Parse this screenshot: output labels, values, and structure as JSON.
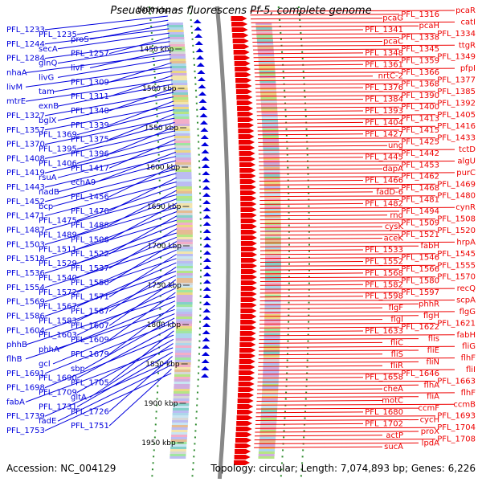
{
  "title": "Pseudomonas fluorescens Pf-5, complete genome",
  "footer": {
    "accession": "Accession: NC_004129",
    "stats": "Topology: circular; Length: 7,074,893 bp; Genes: 6,226"
  },
  "colors": {
    "left_genes": "#0000dd",
    "right_genes": "#ee0000",
    "backbone": "#888888",
    "gc_dots": "#2e8b2e"
  },
  "scale_ticks": [
    "1400 kbp",
    "1450 kbp",
    "1500 kbp",
    "1550 kbp",
    "1600 kbp",
    "1650 kbp",
    "1700 kbp",
    "1750 kbp",
    "1800 kbp",
    "1850 kbp",
    "1900 kbp",
    "1950 kbp"
  ],
  "left_labels": [
    "PFL_1233",
    "PFL_1235",
    "proS",
    "PFL_1244",
    "secA",
    "PFL_1257",
    "PFL_1284",
    "glnQ",
    "livF",
    "nhaA",
    "livG",
    "PFL_1309",
    "livM",
    "tam",
    "PFL_1311",
    "mtrE",
    "exnB",
    "PFL_1340",
    "PFL_1327",
    "bglX",
    "PFL_1339",
    "PFL_1357",
    "PFL_1369",
    "PFL_1375",
    "PFL_1370",
    "PFL_1395",
    "PFL_1396",
    "PFL_1408",
    "PFL_1406",
    "PFL_1417",
    "PFL_1419",
    "rsuA",
    "echA9",
    "PFL_1443",
    "nadB",
    "PFL_1456",
    "PFL_1452",
    "bcp",
    "PFL_1470",
    "PFL_1471",
    "PFL_1475",
    "PFL_1488",
    "PFL_1487",
    "PFL_1489",
    "PFL_1506",
    "PFL_1503",
    "PFL_1511",
    "PFL_1522",
    "PFL_1518",
    "PFL_1529",
    "PFL_1537",
    "PFL_1536",
    "PFL_1540",
    "PFL_1550",
    "PFL_1554",
    "PFL_1572",
    "PFL_1571",
    "PFL_1569",
    "PFL_1567",
    "PFL_1587",
    "PFL_1586",
    "PFL_1583",
    "PFL_1607",
    "PFL_1604",
    "PFL_1603",
    "PFL_1609",
    "phhB",
    "phhA",
    "PFL_1679",
    "flhB",
    "gcl",
    "sbp",
    "PFL_1691",
    "PFL_1690",
    "PFL_1705",
    "PFL_1698",
    "PFL_1709",
    "gltA",
    "fabA",
    "PFL_1731",
    "PFL_1726",
    "PFL_1739",
    "fadE",
    "PFL_1751",
    "PFL_1753"
  ],
  "right_labels": [
    "pcaR",
    "PFL_1316",
    "pcaG",
    "catI",
    "pcaH",
    "PFL_1341",
    "PFL_1334",
    "PFL_1338",
    "pcaC",
    "ttgR",
    "PFL_1345",
    "PFL_1348",
    "PFL_1349",
    "PFL_1359",
    "PFL_1361",
    "pfpI",
    "PFL_1366",
    "nrtC-2",
    "PFL_1377",
    "PFL_1368",
    "PFL_1376",
    "PFL_1385",
    "PFL_1390",
    "PFL_1384",
    "PFL_1392",
    "PFL_1400",
    "PFL_1393",
    "PFL_1405",
    "PFL_1413",
    "PFL_1404",
    "PFL_1416",
    "PFL_1415",
    "PFL_1427",
    "PFL_1433",
    "PFL_1425",
    "ung",
    "tctD",
    "PFL_1442",
    "PFL_1445",
    "algU",
    "PFL_1453",
    "dapA",
    "purC",
    "PFL_1462",
    "PFL_1466",
    "PFL_1469",
    "PFL_1468",
    "fadD-6",
    "PFL_1480",
    "PFL_1481",
    "PFL_1482",
    "cynR",
    "PFL_1494",
    "rnd",
    "PFL_1508",
    "PFL_1509",
    "cysK",
    "PFL_1520",
    "PFL_1521",
    "aceK",
    "hrpA",
    "fabH",
    "PFL_1533",
    "PFL_1545",
    "PFL_1546",
    "PFL_1552",
    "PFL_1555",
    "PFL_1566",
    "PFL_1568",
    "PFL_1570",
    "PFL_1580",
    "PFL_1582",
    "recQ",
    "PFL_1597",
    "PFL_1598",
    "scpA",
    "phhR",
    "flgF",
    "flgG",
    "flgH",
    "flgI",
    "PFL_1621",
    "PFL_1622",
    "PFL_1633",
    "fabH",
    "flis",
    "fliC",
    "fliG",
    "fliE",
    "fliS",
    "flhF",
    "fliN",
    "fliR",
    "fliI",
    "PFL_1646",
    "PFL_1658",
    "PFL_1663",
    "flhA",
    "cheA",
    "flhF",
    "fliA",
    "motC",
    "ccmB",
    "ccmF",
    "PFL_1680",
    "PFL_1693",
    "cycH",
    "PFL_1702",
    "PFL_1704",
    "proX",
    "actP",
    "PFL_1708",
    "lpdA",
    "sucA"
  ]
}
